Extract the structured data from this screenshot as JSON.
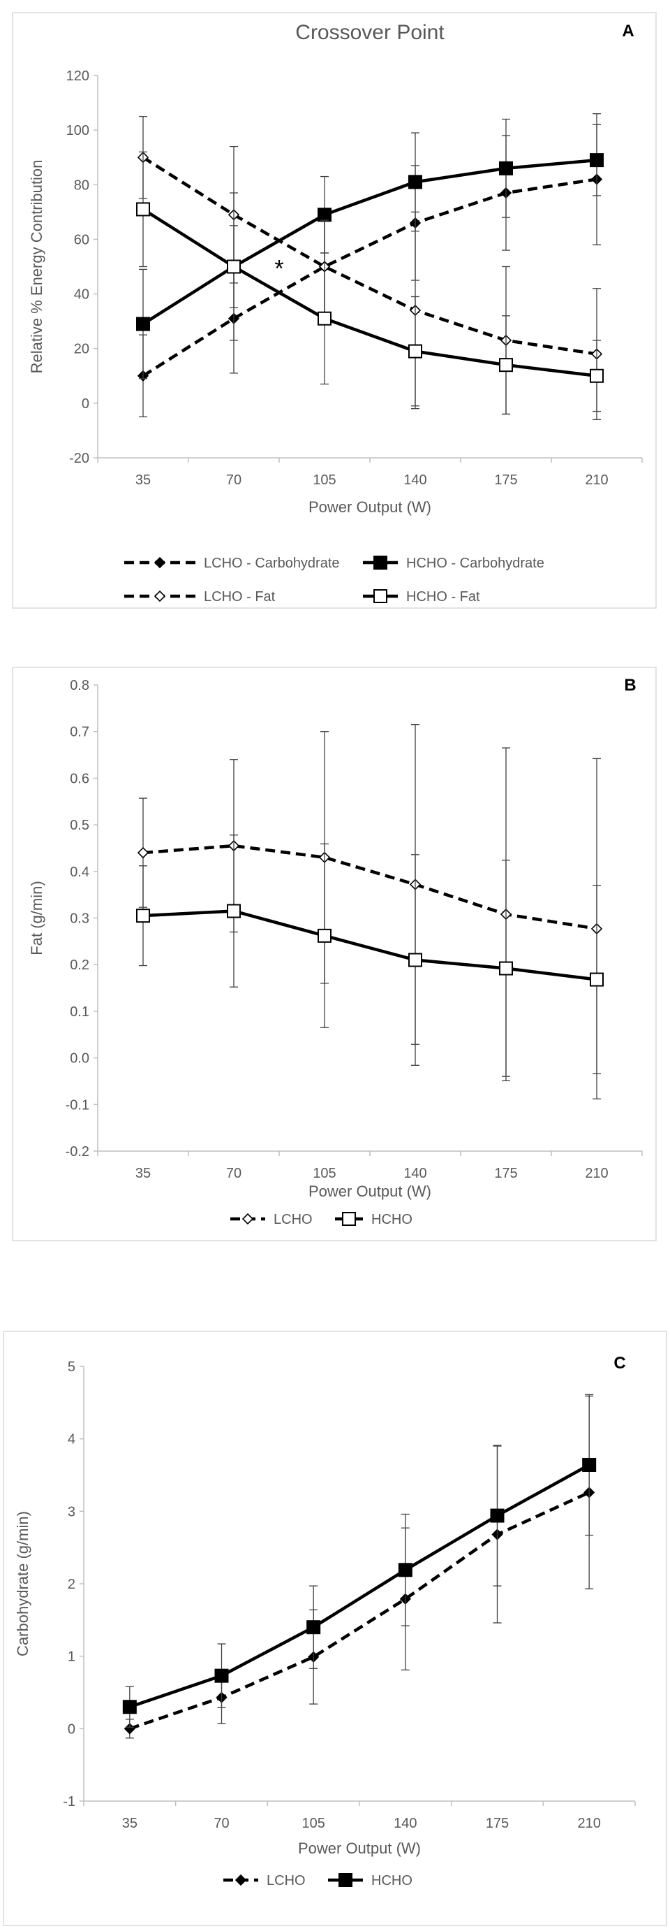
{
  "chart_data": [
    {
      "panel_id": "A",
      "title": "Crossover Point",
      "type": "line",
      "xlabel": "Power Output (W)",
      "ylabel": "Relative % Energy Contribution",
      "categories": [
        "35",
        "70",
        "105",
        "140",
        "175",
        "210"
      ],
      "ylim": [
        -20,
        120
      ],
      "ytick_step": 20,
      "grid": false,
      "legend": "bottom",
      "annotation": "*",
      "annotation_at": {
        "x_between": [
          70,
          105
        ],
        "y": 50
      },
      "series": [
        {
          "name": "LCHO - Carbohydrate",
          "style": "dashed",
          "marker": "diamond-filled",
          "values": [
            10,
            31,
            50,
            66,
            77,
            82
          ],
          "errors": [
            15,
            20,
            17,
            21,
            21,
            24
          ]
        },
        {
          "name": "HCHO - Carbohydrate",
          "style": "solid",
          "marker": "square-filled",
          "values": [
            29,
            50,
            69,
            81,
            86,
            89
          ],
          "errors": [
            20,
            15,
            14,
            18,
            18,
            13
          ]
        },
        {
          "name": "LCHO - Fat",
          "style": "dashed",
          "marker": "diamond-open",
          "values": [
            90,
            69,
            50,
            34,
            23,
            18
          ],
          "errors": [
            15,
            25,
            17,
            36,
            27,
            24
          ]
        },
        {
          "name": "HCHO - Fat",
          "style": "solid",
          "marker": "square-open",
          "values": [
            71,
            50,
            31,
            19,
            14,
            10
          ],
          "errors": [
            21,
            27,
            24,
            20,
            18,
            13
          ]
        }
      ]
    },
    {
      "panel_id": "B",
      "title": "",
      "type": "line",
      "xlabel": "Power Output (W)",
      "ylabel": "Fat (g/min)",
      "categories": [
        "35",
        "70",
        "105",
        "140",
        "175",
        "210"
      ],
      "ylim": [
        -0.2,
        0.8
      ],
      "ytick_step": 0.1,
      "grid": false,
      "legend": "bottom",
      "series": [
        {
          "name": "LCHO",
          "style": "dashed",
          "marker": "diamond-open",
          "values": [
            0.44,
            0.455,
            0.43,
            0.372,
            0.308,
            0.277
          ],
          "errors": [
            0.117,
            0.185,
            0.27,
            0.343,
            0.357,
            0.365
          ]
        },
        {
          "name": "HCHO",
          "style": "solid",
          "marker": "square-open",
          "values": [
            0.305,
            0.315,
            0.262,
            0.21,
            0.192,
            0.168
          ],
          "errors": [
            0.107,
            0.163,
            0.197,
            0.226,
            0.232,
            0.202
          ]
        }
      ]
    },
    {
      "panel_id": "C",
      "title": "",
      "type": "line",
      "xlabel": "Power Output (W)",
      "ylabel": "Carbohydrate (g/min)",
      "categories": [
        "35",
        "70",
        "105",
        "140",
        "175",
        "210"
      ],
      "ylim": [
        -1,
        5
      ],
      "ytick_step": 1,
      "grid": false,
      "legend": "bottom",
      "series": [
        {
          "name": "LCHO",
          "style": "dashed",
          "marker": "diamond-filled",
          "values": [
            0.0,
            0.43,
            0.99,
            1.79,
            2.68,
            3.26
          ],
          "errors": [
            0.13,
            0.36,
            0.65,
            0.98,
            1.22,
            1.33
          ]
        },
        {
          "name": "HCHO",
          "style": "solid",
          "marker": "square-filled",
          "values": [
            0.3,
            0.73,
            1.4,
            2.19,
            2.94,
            3.64
          ],
          "errors": [
            0.28,
            0.44,
            0.57,
            0.77,
            0.97,
            0.97
          ]
        }
      ]
    }
  ],
  "colors": {
    "line": "#000000",
    "axis": "#bfbfbf",
    "text": "#595959",
    "border": "#d9d9d9"
  }
}
